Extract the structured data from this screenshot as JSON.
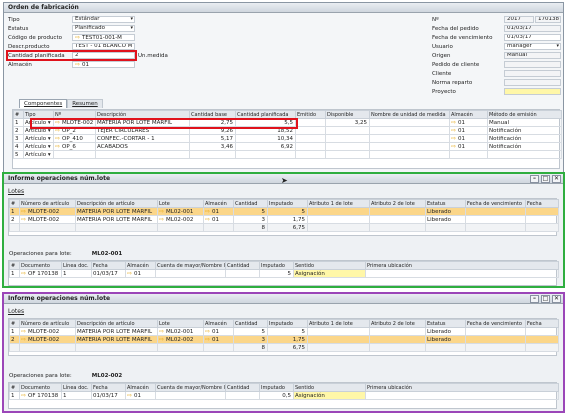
{
  "order": {
    "title": "Orden de fabricación",
    "left": [
      {
        "label": "Tipo",
        "value": "Estándar"
      },
      {
        "label": "Estatus",
        "value": "Planificado"
      },
      {
        "label": "Código de producto",
        "value": "TEST01-001-M"
      },
      {
        "label": "Descr.producto",
        "value": "TEST - 01 BLANCO M"
      },
      {
        "label": "Cantidad planificada",
        "value": "2"
      },
      {
        "label": "Almacén",
        "value": "01"
      }
    ],
    "unit_label": "Un.medida",
    "right": [
      {
        "label": "Nº",
        "value": "2017"
      },
      {
        "label": "Fecha del pedido",
        "value": "01/03/17"
      },
      {
        "label": "Fecha de vencimiento",
        "value": "01/03/17"
      },
      {
        "label": "Usuario",
        "value": "manager"
      },
      {
        "label": "Origen",
        "value": "Manual"
      },
      {
        "label": "Pedido de cliente",
        "value": ""
      },
      {
        "label": "Cliente",
        "value": ""
      },
      {
        "label": "Norma reparto",
        "value": ""
      },
      {
        "label": "Proyecto",
        "value": ""
      }
    ],
    "doc_number": "170138",
    "tabs": [
      "Componentes",
      "Resumen"
    ],
    "headers": [
      "#",
      "Tipo",
      "Nº",
      "Descripción",
      "Cantidad base",
      "Cantidad planificada",
      "Emitido",
      "Disponible",
      "Nombre de unidad de medida",
      "Almacén",
      "Método de emisión"
    ],
    "rows": [
      [
        "1",
        "Artículo",
        "MLOTE-002",
        "MATERIA POR LOTE MARFIL",
        "2,75",
        "5,5",
        "",
        "3,25",
        "",
        "01",
        "Manual"
      ],
      [
        "2",
        "Artículo",
        "OP_2",
        "TEJER CIRCULARES",
        "9,26",
        "18,52",
        "",
        "",
        "",
        "01",
        "Notificación"
      ],
      [
        "3",
        "Artículo",
        "OP_410",
        "CONFEC.-CORTAR - 1",
        "5,17",
        "10,34",
        "",
        "",
        "",
        "01",
        "Notificación"
      ],
      [
        "4",
        "Artículo",
        "OP_6",
        "ACABADOS",
        "3,46",
        "6,92",
        "",
        "",
        "",
        "01",
        "Notificación"
      ],
      [
        "5",
        "Artículo",
        "",
        "",
        "",
        "",
        "",
        "",
        "",
        "",
        ""
      ]
    ]
  },
  "w1": {
    "title": "Informe operaciones núm.lote",
    "lotes_label": "Lotes",
    "headers": [
      "#",
      "Número de artículo",
      "Descripción de artículo",
      "Lote",
      "Almacén",
      "Cantidad",
      "Imputado",
      "Atributo 1 de lote",
      "Atributo 2 de lote",
      "Estatus",
      "Fecha de vencimiento",
      "Fecha"
    ],
    "rows": [
      [
        "1",
        "MLOTE-002",
        "MATERIA POR LOTE MARFIL",
        "ML02-001",
        "01",
        "5",
        "5",
        "",
        "",
        "Liberado",
        "",
        ""
      ],
      [
        "2",
        "MLOTE-002",
        "MATERIA POR LOTE MARFIL",
        "ML02-002",
        "01",
        "3",
        "1,75",
        "",
        "",
        "Liberado",
        "",
        ""
      ]
    ],
    "totals": [
      "8",
      "6,75"
    ],
    "ops_label": "Operaciones para lote:",
    "ops_lot": "ML02-001",
    "op_headers": [
      "#",
      "Documento",
      "Línea doc.",
      "Fecha",
      "Almacén",
      "Cuenta de mayor/Nombre IC",
      "Cantidad",
      "Imputado",
      "Sentido",
      "Primera ubicación"
    ],
    "op_rows": [
      [
        "1",
        "OF 170138",
        "1",
        "01/03/17",
        "01",
        "",
        "",
        "5",
        "Asignación",
        ""
      ]
    ]
  },
  "w2": {
    "title": "Informe operaciones núm.lote",
    "lotes_label": "Lotes",
    "headers": [
      "#",
      "Número de artículo",
      "Descripción de artículo",
      "Lote",
      "Almacén",
      "Cantidad",
      "Imputado",
      "Atributo 1 de lote",
      "Atributo 2 de lote",
      "Estatus",
      "Fecha de vencimiento",
      "Fecha"
    ],
    "rows": [
      [
        "1",
        "MLOTE-002",
        "MATERIA POR LOTE MARFIL",
        "ML02-001",
        "01",
        "5",
        "5",
        "",
        "",
        "Liberado",
        "",
        ""
      ],
      [
        "2",
        "MLOTE-002",
        "MATERIA POR LOTE MARFIL",
        "ML02-002",
        "01",
        "3",
        "1,75",
        "",
        "",
        "Liberado",
        "",
        ""
      ]
    ],
    "totals": [
      "8",
      "6,75"
    ],
    "ops_label": "Operaciones para lote:",
    "ops_lot": "ML02-002",
    "op_headers": [
      "#",
      "Documento",
      "Línea doc.",
      "Fecha",
      "Almacén",
      "Cuenta de mayor/Nombre IC",
      "Cantidad",
      "Imputado",
      "Sentido",
      "Primera ubicación"
    ],
    "op_rows": [
      [
        "1",
        "OF 170138",
        "1",
        "01/03/17",
        "01",
        "",
        "",
        "0,5",
        "Asignación",
        ""
      ]
    ]
  }
}
